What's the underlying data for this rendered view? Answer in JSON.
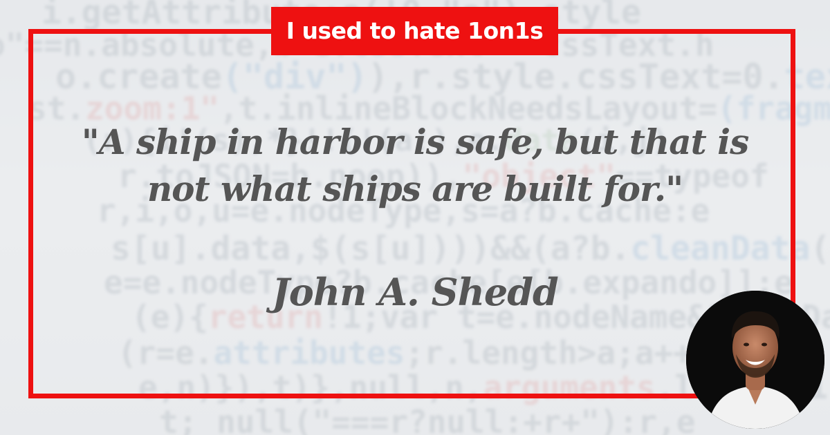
{
  "banner": {
    "title": "I used to hate 1on1s",
    "color": "#ee1111"
  },
  "quote": {
    "line1": "\"A ship in harbor is safe, but that is",
    "line2": "not what ships are built for.\"",
    "author": "John A. Shedd",
    "text_color": "#555555"
  },
  "frame": {
    "color": "#ee1111"
  },
  "avatar": {
    "icon": "person-photo"
  }
}
